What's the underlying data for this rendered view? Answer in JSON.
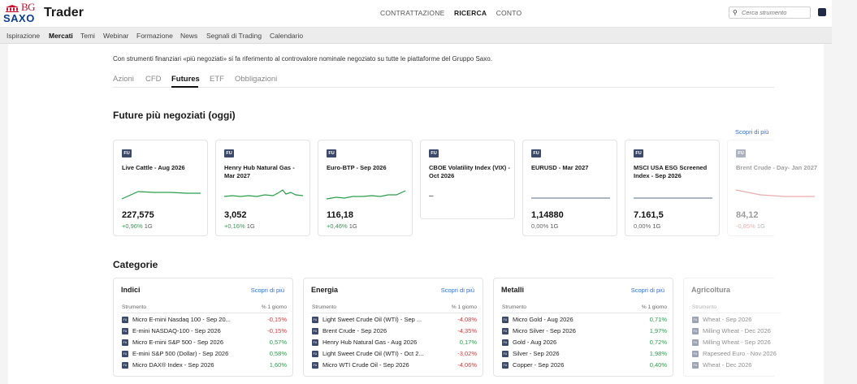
{
  "header": {
    "logo_bg": "BG",
    "logo_saxo": "SAXO",
    "app_name": "Trader",
    "nav": [
      "CONTRATTAZIONE",
      "RICERCA",
      "CONTO"
    ],
    "nav_active": "RICERCA",
    "search_placeholder": "Cerca strumento"
  },
  "subnav": {
    "items": [
      "Ispirazione",
      "Mercati",
      "Temi",
      "Webinar",
      "Formazione",
      "News",
      "Segnali di Trading",
      "Calendario"
    ],
    "active": "Mercati"
  },
  "intro_text": "Con strumenti finanziari «più negoziati» si fa riferimento al controvalore nominale negoziato su tutte le piattaforme del Gruppo Saxo.",
  "tabs": {
    "items": [
      "Azioni",
      "CFD",
      "Futures",
      "ETF",
      "Obbligazioni"
    ],
    "active": "Futures"
  },
  "top_futures": {
    "title": "Future più negoziati (oggi)",
    "more_link": "Scopri di più",
    "badge": "FU",
    "period": "1G",
    "cards": [
      {
        "name": "Live Cattle - Aug 2026",
        "price": "227,575",
        "change": "+0,96%",
        "trend": "pos",
        "line_color": "#2a9d4a"
      },
      {
        "name": "Henry Hub Natural Gas - Mar 2027",
        "price": "3,052",
        "change": "+0,16%",
        "trend": "pos",
        "line_color": "#2a9d4a"
      },
      {
        "name": "Euro-BTP - Sep 2026",
        "price": "116,18",
        "change": "+0,46%",
        "trend": "pos",
        "line_color": "#2a9d4a"
      },
      {
        "name": "CBOE Volatility Index (VIX) - Oct 2026",
        "price": "–",
        "change": "",
        "trend": "none",
        "line_color": ""
      },
      {
        "name": "EURUSD - Mar 2027",
        "price": "1,14880",
        "change": "0,00%",
        "trend": "flat",
        "line_color": "#7a8aa0"
      },
      {
        "name": "MSCI USA ESG Screened Index - Sep 2026",
        "price": "7.161,5",
        "change": "0,00%",
        "trend": "flat",
        "line_color": "#7a8aa0"
      },
      {
        "name": "Brent Crude - Day- Jan 2027",
        "price": "84,12",
        "change": "-0,85%",
        "trend": "neg",
        "line_color": "#d23c3c"
      }
    ]
  },
  "categories": {
    "title": "Categorie",
    "more_link": "Scopri di più",
    "col_instrument": "Strumento",
    "col_change": "% 1 giorno",
    "icon_label": "FU",
    "blocks": [
      {
        "title": "Indici",
        "rows": [
          {
            "name": "Micro E-mini Nasdaq 100 - Sep 20...",
            "value": "-0,15%",
            "trend": "neg"
          },
          {
            "name": "E-mini NASDAQ-100 - Sep 2026",
            "value": "-0,15%",
            "trend": "neg"
          },
          {
            "name": "Micro E-mini S&P 500 - Sep 2026",
            "value": "0,57%",
            "trend": "pos"
          },
          {
            "name": "E-mini S&P 500 (Dollar) - Sep 2026",
            "value": "0,58%",
            "trend": "pos"
          },
          {
            "name": "Micro DAX® Index - Sep 2026",
            "value": "1,60%",
            "trend": "pos"
          }
        ]
      },
      {
        "title": "Energia",
        "rows": [
          {
            "name": "Light Sweet Crude Oil (WTI) - Sep ...",
            "value": "-4,08%",
            "trend": "neg"
          },
          {
            "name": "Brent Crude - Sep 2026",
            "value": "-4,35%",
            "trend": "neg"
          },
          {
            "name": "Henry Hub Natural Gas - Aug 2026",
            "value": "0,17%",
            "trend": "pos"
          },
          {
            "name": "Light Sweet Crude Oil (WTI) - Oct 2...",
            "value": "-3,02%",
            "trend": "neg"
          },
          {
            "name": "Micro WTI Crude Oil - Sep 2026",
            "value": "-4,06%",
            "trend": "neg"
          }
        ]
      },
      {
        "title": "Metalli",
        "rows": [
          {
            "name": "Micro Gold - Aug 2026",
            "value": "0,71%",
            "trend": "pos"
          },
          {
            "name": "Micro Silver - Sep 2026",
            "value": "1,97%",
            "trend": "pos"
          },
          {
            "name": "Gold - Aug 2026",
            "value": "0,72%",
            "trend": "pos"
          },
          {
            "name": "Silver - Sep 2026",
            "value": "1,98%",
            "trend": "pos"
          },
          {
            "name": "Copper - Sep 2026",
            "value": "0,40%",
            "trend": "pos"
          }
        ]
      },
      {
        "title": "Agricoltura",
        "rows": [
          {
            "name": "Wheat - Sep 2026",
            "value": "",
            "trend": "neg"
          },
          {
            "name": "Milling Wheat - Dec 2026",
            "value": "",
            "trend": "neg"
          },
          {
            "name": "Milling Wheat - Sep 2026",
            "value": "",
            "trend": "neg"
          },
          {
            "name": "Rapeseed Euro - Nov 2026",
            "value": "",
            "trend": "neg"
          },
          {
            "name": "Wheat - Dec 2026",
            "value": "",
            "trend": "neg"
          }
        ]
      }
    ]
  }
}
